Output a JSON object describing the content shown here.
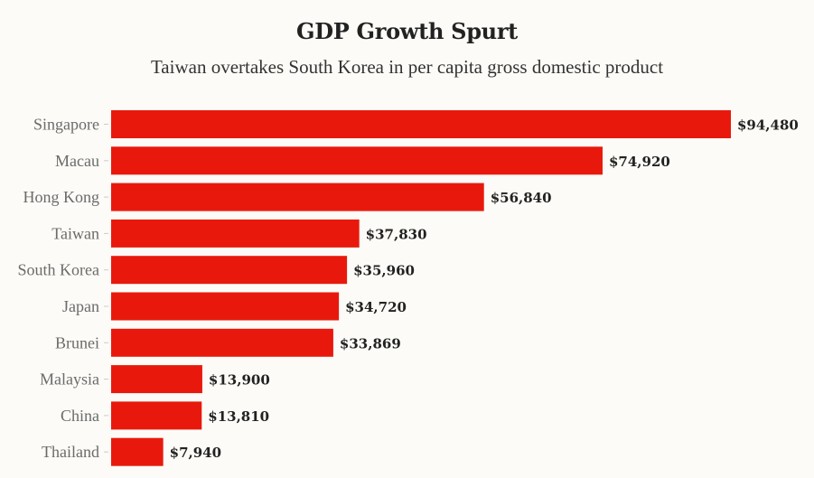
{
  "header": {
    "title": "GDP Growth Spurt",
    "subtitle": "Taiwan overtakes South Korea in per capita gross domestic product"
  },
  "colors": {
    "background": "#fcfbf7",
    "bar": "#e8190c",
    "category_text": "#6b6b6b",
    "value_text": "#222222",
    "tick": "#cccccc"
  },
  "chart_data": {
    "type": "bar",
    "orientation": "horizontal",
    "title": "GDP Growth Spurt",
    "subtitle": "Taiwan overtakes South Korea in per capita gross domestic product",
    "xlabel": "",
    "ylabel": "",
    "grid": false,
    "legend": "none",
    "xlim": [
      0,
      94480
    ],
    "categories": [
      "Singapore",
      "Macau",
      "Hong Kong",
      "Taiwan",
      "South Korea",
      "Japan",
      "Brunei",
      "Malaysia",
      "China",
      "Thailand"
    ],
    "values": [
      94480,
      74920,
      56840,
      37830,
      35960,
      34720,
      33869,
      13900,
      13810,
      7940
    ],
    "value_labels": [
      "$94,480",
      "$74,920",
      "$56,840",
      "$37,830",
      "$35,960",
      "$34,720",
      "$33,869",
      "$13,900",
      "$13,810",
      "$7,940"
    ]
  }
}
